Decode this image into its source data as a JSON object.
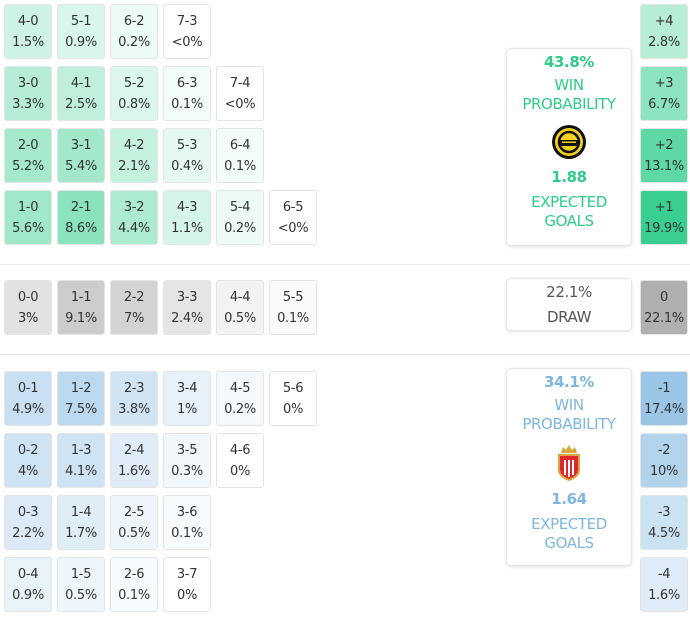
{
  "colors": {
    "home": "#2ecc8a",
    "draw": "#969696",
    "away": "#7fb6e0"
  },
  "home": {
    "win_probability": "43.8%",
    "win_label": "WIN PROBABILITY",
    "expected_goals": "1.88",
    "xg_label": "EXPECTED GOALS",
    "logo": "home-club-crest-yellow-black",
    "rows": [
      [
        {
          "s": "4-0",
          "p": "1.5%",
          "v": 1.5
        },
        {
          "s": "5-1",
          "p": "0.9%",
          "v": 0.9
        },
        {
          "s": "6-2",
          "p": "0.2%",
          "v": 0.2
        },
        {
          "s": "7-3",
          "p": "<0%",
          "v": 0
        }
      ],
      [
        {
          "s": "3-0",
          "p": "3.3%",
          "v": 3.3
        },
        {
          "s": "4-1",
          "p": "2.5%",
          "v": 2.5
        },
        {
          "s": "5-2",
          "p": "0.8%",
          "v": 0.8
        },
        {
          "s": "6-3",
          "p": "0.1%",
          "v": 0.1
        },
        {
          "s": "7-4",
          "p": "<0%",
          "v": 0
        }
      ],
      [
        {
          "s": "2-0",
          "p": "5.2%",
          "v": 5.2
        },
        {
          "s": "3-1",
          "p": "5.4%",
          "v": 5.4
        },
        {
          "s": "4-2",
          "p": "2.1%",
          "v": 2.1
        },
        {
          "s": "5-3",
          "p": "0.4%",
          "v": 0.4
        },
        {
          "s": "6-4",
          "p": "0.1%",
          "v": 0.1
        }
      ],
      [
        {
          "s": "1-0",
          "p": "5.6%",
          "v": 5.6
        },
        {
          "s": "2-1",
          "p": "8.6%",
          "v": 8.6
        },
        {
          "s": "3-2",
          "p": "4.4%",
          "v": 4.4
        },
        {
          "s": "4-3",
          "p": "1.1%",
          "v": 1.1
        },
        {
          "s": "5-4",
          "p": "0.2%",
          "v": 0.2
        },
        {
          "s": "6-5",
          "p": "<0%",
          "v": 0
        }
      ]
    ],
    "margins": [
      {
        "s": "+4",
        "p": "2.8%",
        "v": 2.8
      },
      {
        "s": "+3",
        "p": "6.7%",
        "v": 6.7
      },
      {
        "s": "+2",
        "p": "13.1%",
        "v": 13.1
      },
      {
        "s": "+1",
        "p": "19.9%",
        "v": 19.9
      }
    ]
  },
  "draw": {
    "probability": "22.1%",
    "label": "DRAW",
    "row": [
      {
        "s": "0-0",
        "p": "3%",
        "v": 3
      },
      {
        "s": "1-1",
        "p": "9.1%",
        "v": 9.1
      },
      {
        "s": "2-2",
        "p": "7%",
        "v": 7
      },
      {
        "s": "3-3",
        "p": "2.4%",
        "v": 2.4
      },
      {
        "s": "4-4",
        "p": "0.5%",
        "v": 0.5
      },
      {
        "s": "5-5",
        "p": "0.1%",
        "v": 0.1
      }
    ],
    "margin": {
      "s": "0",
      "p": "22.1%",
      "v": 22.1
    }
  },
  "away": {
    "win_probability": "34.1%",
    "win_label": "WIN PROBABILITY",
    "expected_goals": "1.64",
    "xg_label": "EXPECTED GOALS",
    "logo": "away-club-crest-red-white",
    "rows": [
      [
        {
          "s": "0-1",
          "p": "4.9%",
          "v": 4.9
        },
        {
          "s": "1-2",
          "p": "7.5%",
          "v": 7.5
        },
        {
          "s": "2-3",
          "p": "3.8%",
          "v": 3.8
        },
        {
          "s": "3-4",
          "p": "1%",
          "v": 1
        },
        {
          "s": "4-5",
          "p": "0.2%",
          "v": 0.2
        },
        {
          "s": "5-6",
          "p": "0%",
          "v": 0
        }
      ],
      [
        {
          "s": "0-2",
          "p": "4%",
          "v": 4
        },
        {
          "s": "1-3",
          "p": "4.1%",
          "v": 4.1
        },
        {
          "s": "2-4",
          "p": "1.6%",
          "v": 1.6
        },
        {
          "s": "3-5",
          "p": "0.3%",
          "v": 0.3
        },
        {
          "s": "4-6",
          "p": "0%",
          "v": 0
        }
      ],
      [
        {
          "s": "0-3",
          "p": "2.2%",
          "v": 2.2
        },
        {
          "s": "1-4",
          "p": "1.7%",
          "v": 1.7
        },
        {
          "s": "2-5",
          "p": "0.5%",
          "v": 0.5
        },
        {
          "s": "3-6",
          "p": "0.1%",
          "v": 0.1
        }
      ],
      [
        {
          "s": "0-4",
          "p": "0.9%",
          "v": 0.9
        },
        {
          "s": "1-5",
          "p": "0.5%",
          "v": 0.5
        },
        {
          "s": "2-6",
          "p": "0.1%",
          "v": 0.1
        },
        {
          "s": "3-7",
          "p": "0%",
          "v": 0
        }
      ]
    ],
    "margins": [
      {
        "s": "-1",
        "p": "17.4%",
        "v": 17.4
      },
      {
        "s": "-2",
        "p": "10%",
        "v": 10
      },
      {
        "s": "-3",
        "p": "4.5%",
        "v": 4.5
      },
      {
        "s": "-4",
        "p": "1.6%",
        "v": 1.6
      }
    ]
  }
}
